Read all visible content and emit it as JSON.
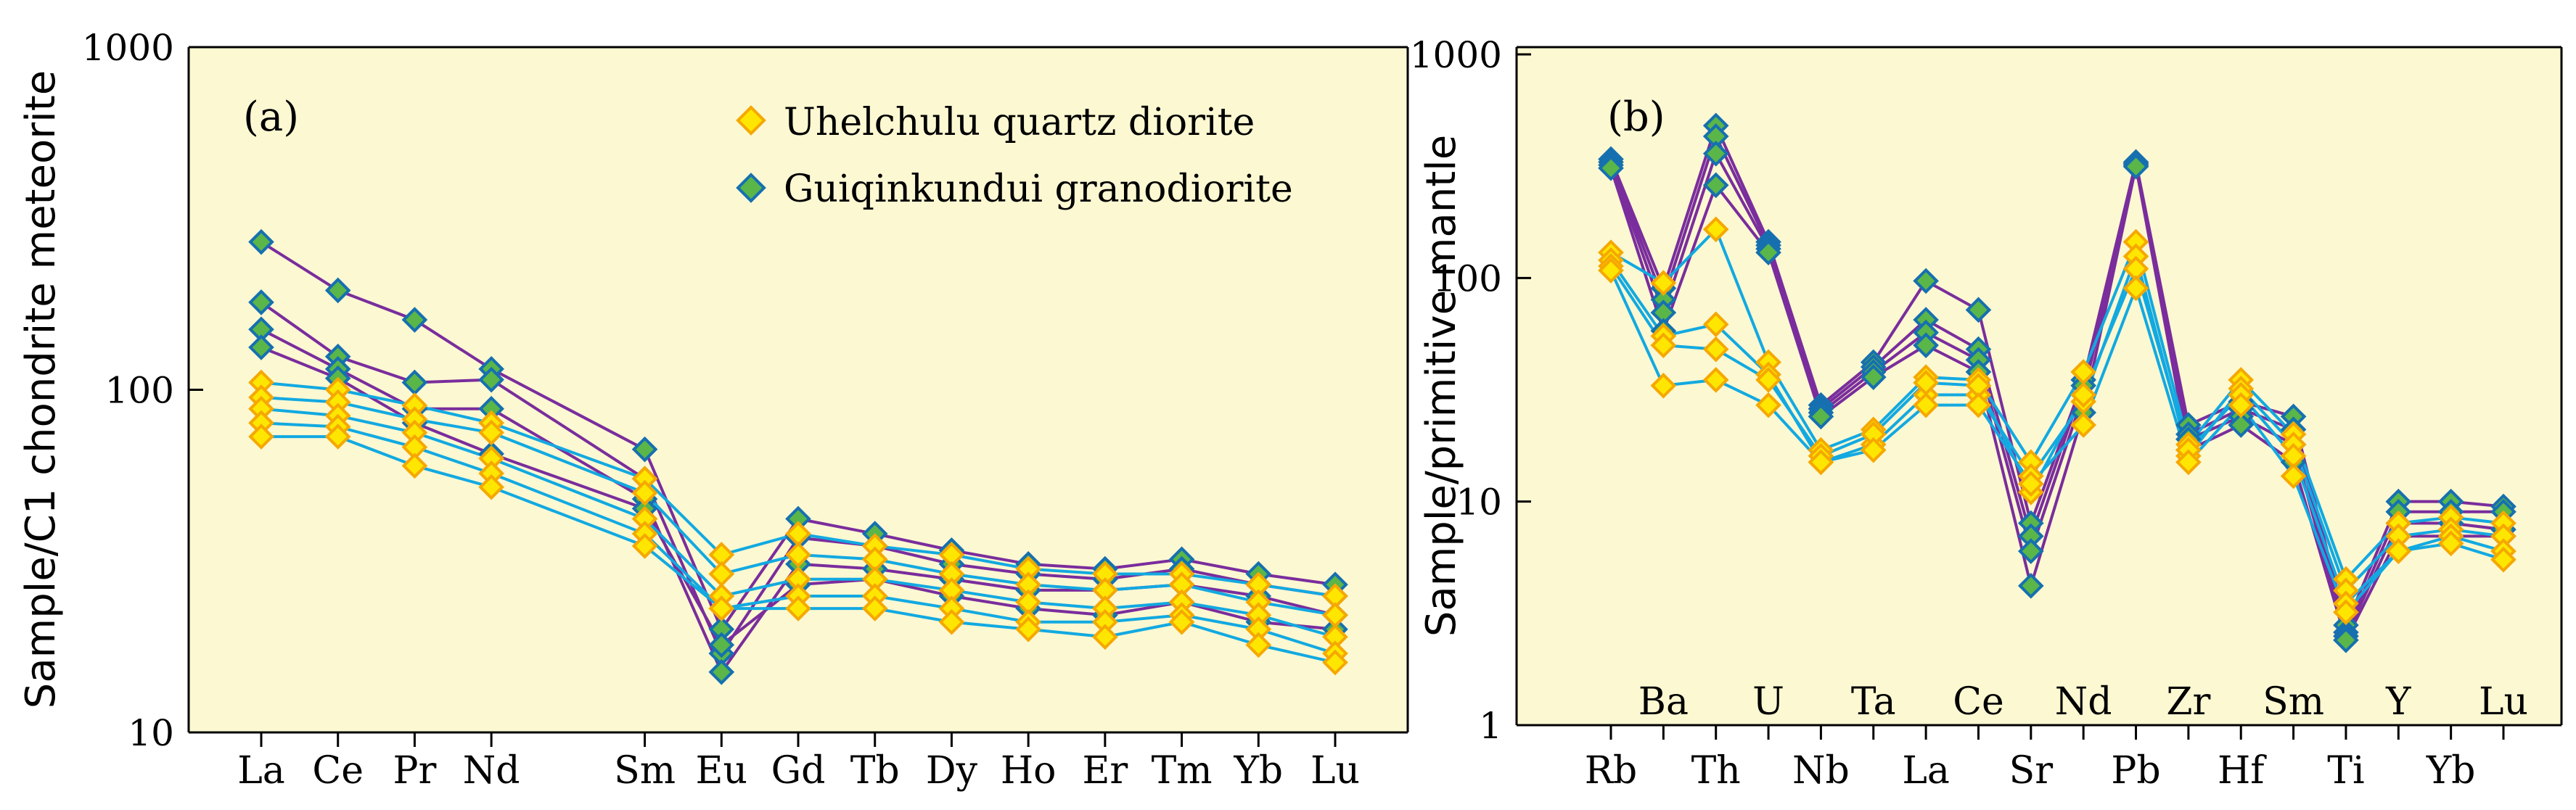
{
  "chart_data": [
    {
      "type": "line",
      "panel_label": "(a)",
      "ylabel": "Sample/C1 chondrite meteorite",
      "yscale": "log",
      "ylim": [
        10,
        1000
      ],
      "ytick_labels": [
        "1000",
        "100",
        "10"
      ],
      "categories": [
        "La",
        "Ce",
        "Pr",
        "Nd",
        "Sm",
        "Eu",
        "Gd",
        "Tb",
        "Dy",
        "Ho",
        "Er",
        "Tm",
        "Yb",
        "Lu"
      ],
      "category_positions": [
        0,
        1,
        2,
        3,
        5,
        6,
        7,
        8,
        9,
        10,
        11,
        12,
        13,
        14
      ],
      "legend": [
        {
          "label": "Uhelchulu quartz diorite",
          "marker": "yellow-diamond"
        },
        {
          "label": "Guiqinkundui granodiorite",
          "marker": "green-diamond"
        }
      ],
      "series": [
        {
          "name": "Uhelchulu quartz diorite",
          "line": "cyan",
          "marker": "yellow",
          "values": [
            105,
            100,
            90,
            80,
            55,
            33,
            38,
            35,
            33,
            30,
            29,
            29,
            27,
            25
          ]
        },
        {
          "name": "Uhelchulu quartz diorite",
          "line": "cyan",
          "marker": "yellow",
          "values": [
            95,
            92,
            82,
            75,
            50,
            29,
            33,
            32,
            29,
            27,
            26,
            27,
            24,
            22
          ]
        },
        {
          "name": "Uhelchulu quartz diorite",
          "line": "cyan",
          "marker": "yellow",
          "values": [
            88,
            84,
            75,
            63,
            42,
            25,
            28,
            28,
            26,
            24,
            23,
            24,
            22,
            19
          ]
        },
        {
          "name": "Uhelchulu quartz diorite",
          "line": "cyan",
          "marker": "yellow",
          "values": [
            80,
            78,
            68,
            57,
            38,
            23,
            25,
            25,
            23,
            21,
            21,
            22,
            20,
            17
          ]
        },
        {
          "name": "Uhelchulu quartz diorite",
          "line": "cyan",
          "marker": "yellow",
          "values": [
            73,
            73,
            60,
            52,
            35,
            23,
            23,
            23,
            21,
            20,
            19,
            21,
            18,
            16
          ]
        },
        {
          "name": "Guiqinkundui granodiorite",
          "line": "purple",
          "marker": "green",
          "values": [
            270,
            195,
            160,
            115,
            67,
            20,
            42,
            38,
            34,
            31,
            30,
            32,
            29,
            27
          ]
        },
        {
          "name": "Guiqinkundui granodiorite",
          "line": "purple",
          "marker": "green",
          "values": [
            180,
            125,
            105,
            107,
            55,
            17,
            37,
            35,
            31,
            29,
            28,
            30,
            27,
            25
          ]
        },
        {
          "name": "Guiqinkundui granodiorite",
          "line": "purple",
          "marker": "green",
          "values": [
            150,
            115,
            88,
            88,
            48,
            15,
            31,
            30,
            28,
            26,
            26,
            27,
            25,
            22
          ]
        },
        {
          "name": "Guiqinkundui granodiorite",
          "line": "purple",
          "marker": "green",
          "values": [
            133,
            108,
            80,
            65,
            45,
            18,
            27,
            28,
            25,
            23,
            22,
            24,
            21,
            20
          ]
        }
      ]
    },
    {
      "type": "line",
      "panel_label": "(b)",
      "ylabel": "Sample/primitive mantle",
      "yscale": "log",
      "ylim": [
        1,
        1000
      ],
      "ytick_labels": [
        "1000",
        "100",
        "10",
        "1"
      ],
      "categories": [
        "Rb",
        "Ba",
        "Th",
        "U",
        "Nb",
        "Ta",
        "La",
        "Ce",
        "Sr",
        "Nd",
        "Pb",
        "Zr",
        "Hf",
        "Sm",
        "Ti",
        "Y",
        "Yb",
        "Lu"
      ],
      "bottom_tick_labels": [
        "Rb",
        "Th",
        "Nb",
        "La",
        "Sr",
        "Pb",
        "Hf",
        "Ti",
        "Yb"
      ],
      "inner_tick_labels": [
        "Ba",
        "U",
        "Ta",
        "Ce",
        "Nd",
        "Zr",
        "Sm",
        "Y",
        "Lu"
      ],
      "series": [
        {
          "name": "Uhelchulu quartz diorite",
          "line": "cyan",
          "marker": "yellow",
          "values": [
            130,
            95,
            165,
            42,
            17,
            21,
            36,
            35,
            15,
            38,
            145,
            18,
            35,
            20,
            4.5,
            8,
            8.5,
            8
          ]
        },
        {
          "name": "Uhelchulu quartz diorite",
          "line": "cyan",
          "marker": "yellow",
          "values": [
            120,
            55,
            62,
            37,
            15,
            18,
            30,
            30,
            13,
            28,
            125,
            16,
            32,
            18,
            4,
            7,
            7.5,
            7
          ]
        },
        {
          "name": "Uhelchulu quartz diorite",
          "line": "cyan",
          "marker": "yellow",
          "values": [
            113,
            50,
            48,
            35,
            16,
            20,
            34,
            33,
            11,
            30,
            110,
            17,
            30,
            16,
            3.5,
            6,
            7,
            6
          ]
        },
        {
          "name": "Uhelchulu quartz diorite",
          "line": "cyan",
          "marker": "yellow",
          "values": [
            108,
            33,
            35,
            27,
            15,
            17,
            27,
            27,
            12,
            22,
            90,
            15,
            27,
            13,
            3.2,
            6,
            6.5,
            5.5
          ]
        },
        {
          "name": "Guiqinkundui granodiorite",
          "line": "purple",
          "marker": "green",
          "values": [
            340,
            90,
            480,
            145,
            27,
            42,
            97,
            72,
            8,
            35,
            330,
            22,
            28,
            24,
            2.8,
            10,
            10,
            9.5
          ]
        },
        {
          "name": "Guiqinkundui granodiorite",
          "line": "purple",
          "marker": "green",
          "values": [
            330,
            80,
            430,
            140,
            26,
            40,
            65,
            48,
            7,
            33,
            325,
            20,
            26,
            21,
            2.6,
            9,
            9,
            9
          ]
        },
        {
          "name": "Guiqinkundui granodiorite",
          "line": "purple",
          "marker": "green",
          "values": [
            320,
            70,
            360,
            135,
            25,
            38,
            57,
            43,
            6,
            30,
            320,
            19,
            24,
            18,
            2.5,
            8,
            8,
            7.5
          ]
        },
        {
          "name": "Guiqinkundui granodiorite",
          "line": "purple",
          "marker": "green",
          "values": [
            310,
            58,
            260,
            130,
            24,
            36,
            50,
            38,
            4.2,
            25,
            315,
            17,
            22,
            15,
            2.4,
            7,
            7,
            7
          ]
        }
      ]
    }
  ],
  "colors": {
    "panel_bg": "#fcf8d2",
    "line_a": "#12a9e1",
    "line_b": "#7a2d9c",
    "marker_a_fill": "#ffe600",
    "marker_a_edge": "#f5a800",
    "marker_b_fill": "#5ab649",
    "marker_b_edge": "#1670b0"
  }
}
